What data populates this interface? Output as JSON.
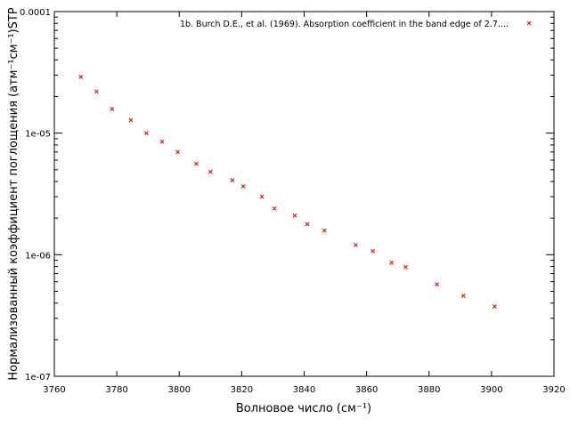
{
  "chart_data": {
    "type": "scatter",
    "xlabel": "Волновое число (см⁻¹)",
    "ylabel": "Нормализованный коэффициент поглощения (атм⁻¹см⁻¹)STP",
    "xlim": [
      3760,
      3920
    ],
    "ylim": [
      1e-07,
      0.0001
    ],
    "y_scale": "log",
    "x_ticks": [
      "3760",
      "3780",
      "3800",
      "3820",
      "3840",
      "3860",
      "3880",
      "3900",
      "3920"
    ],
    "y_ticks": [
      "1e-07",
      "1e-06",
      "1e-05",
      "0.0001"
    ],
    "grid": false,
    "legend_position": "top-right",
    "marker_color": "#e41a1c",
    "series": [
      {
        "name": "1b. Burch D.E., et al. (1969). Absorption coefficient in the band edge of 2.7....",
        "points": [
          {
            "x": 3768.5,
            "y": 2.9e-05
          },
          {
            "x": 3773.5,
            "y": 2.2e-05
          },
          {
            "x": 3778.5,
            "y": 1.58e-05
          },
          {
            "x": 3784.5,
            "y": 1.28e-05
          },
          {
            "x": 3789.5,
            "y": 1e-05
          },
          {
            "x": 3794.5,
            "y": 8.5e-06
          },
          {
            "x": 3799.5,
            "y": 7e-06
          },
          {
            "x": 3805.5,
            "y": 5.6e-06
          },
          {
            "x": 3810,
            "y": 4.8e-06
          },
          {
            "x": 3817,
            "y": 4.1e-06
          },
          {
            "x": 3820.5,
            "y": 3.65e-06
          },
          {
            "x": 3826.5,
            "y": 3e-06
          },
          {
            "x": 3830.5,
            "y": 2.4e-06
          },
          {
            "x": 3837,
            "y": 2.1e-06
          },
          {
            "x": 3841,
            "y": 1.78e-06
          },
          {
            "x": 3846.5,
            "y": 1.58e-06
          },
          {
            "x": 3856.5,
            "y": 1.2e-06
          },
          {
            "x": 3862,
            "y": 1.07e-06
          },
          {
            "x": 3868,
            "y": 8.6e-07
          },
          {
            "x": 3872.5,
            "y": 7.9e-07
          },
          {
            "x": 3882.5,
            "y": 5.7e-07
          },
          {
            "x": 3891,
            "y": 4.6e-07
          },
          {
            "x": 3901,
            "y": 3.75e-07
          }
        ]
      }
    ]
  }
}
